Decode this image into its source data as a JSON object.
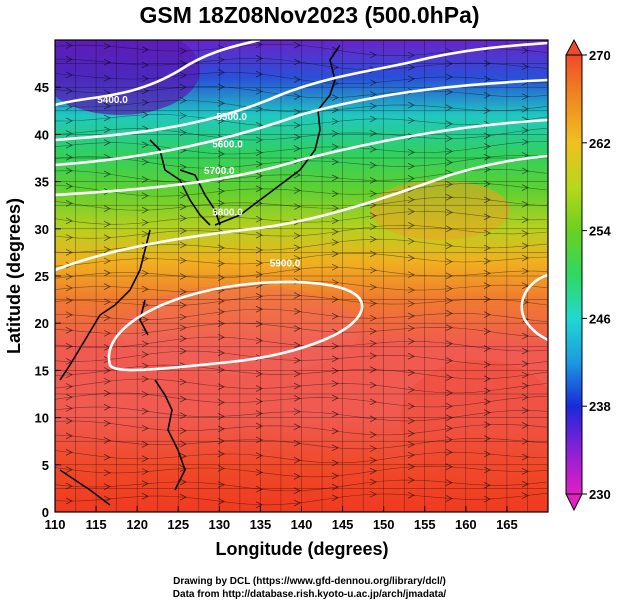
{
  "title": "GSM 18Z08Nov2023 (500.0hPa)",
  "xlabel": "Longitude (degrees)",
  "ylabel": "Latitude  (degrees)",
  "credits": [
    "Drawing by DCL (https://www.gfd-dennou.org/library/dcl/)",
    "Data from http://database.rish.kyoto-u.ac.jp/arch/jmadata/"
  ],
  "chart_data": {
    "type": "heatmap",
    "title": "GSM 18Z08Nov2023 (500.0hPa)",
    "xlabel": "Longitude (degrees)",
    "ylabel": "Latitude  (degrees)",
    "xlim": [
      110,
      170
    ],
    "ylim": [
      0,
      50
    ],
    "x_ticks": [
      110,
      115,
      120,
      125,
      130,
      135,
      140,
      145,
      150,
      155,
      160,
      165
    ],
    "y_ticks": [
      0,
      5,
      10,
      15,
      20,
      25,
      30,
      35,
      40,
      45
    ],
    "colorbar": {
      "min": 230,
      "max": 270,
      "ticks": [
        230,
        238,
        246,
        254,
        262,
        270
      ],
      "colors": [
        "#e020c0",
        "#8a20d8",
        "#1a2ad8",
        "#1a9ae0",
        "#22d8d0",
        "#30d860",
        "#6ad020",
        "#b8d818",
        "#f0c020",
        "#f08a20",
        "#f04a2a"
      ]
    },
    "contour_labels": [
      {
        "text": "5400.0",
        "lon": 117,
        "lat": 43.3
      },
      {
        "text": "5500.0",
        "lon": 131.5,
        "lat": 41.5
      },
      {
        "text": "5600.0",
        "lon": 131,
        "lat": 38.6
      },
      {
        "text": "5700.0",
        "lon": 130,
        "lat": 35.8
      },
      {
        "text": "5800.0",
        "lon": 131,
        "lat": 31.4
      },
      {
        "text": "5900.0",
        "lon": 138,
        "lat": 26.0
      }
    ]
  }
}
